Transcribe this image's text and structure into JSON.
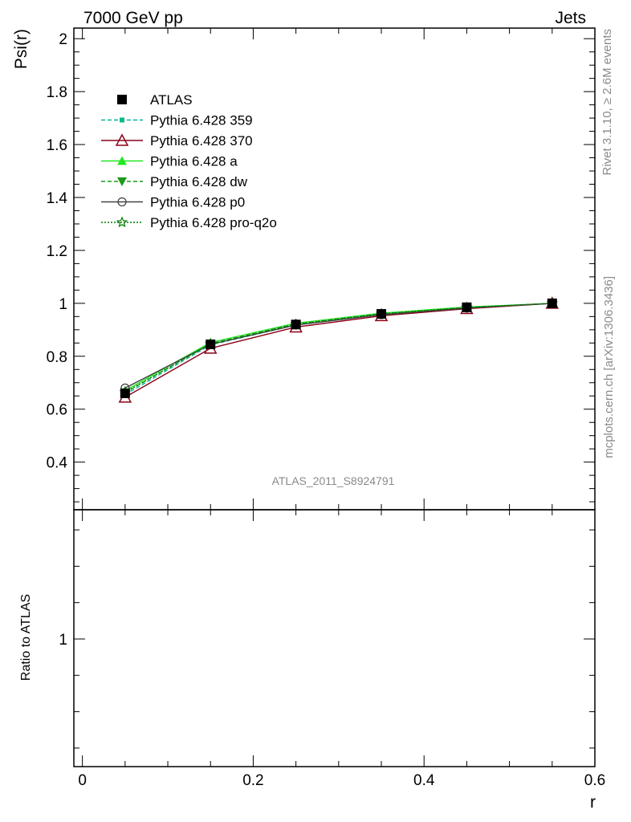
{
  "header": {
    "left": "7000 GeV pp",
    "right": "Jets"
  },
  "side": {
    "rivet": "Rivet 3.1.10, ≥ 2.6M events",
    "mcplots": "mcplots.cern.ch [arXiv:1306.3436]"
  },
  "watermark": "ATLAS_2011_S8924791",
  "chart_data": [
    {
      "type": "line",
      "panel": "main",
      "title": "",
      "xlabel": "r",
      "ylabel": "Psi(r)",
      "xlim": [
        -0.01,
        0.6
      ],
      "ylim": [
        0.22,
        2.04
      ],
      "yticks": [
        "0.4",
        "0.6",
        "0.8",
        "1",
        "1.2",
        "1.4",
        "1.6",
        "1.8",
        "2"
      ],
      "legend_position": "top-left",
      "x": [
        0.05,
        0.15,
        0.25,
        0.35,
        0.45,
        0.55
      ],
      "series": [
        {
          "name": "ATLAS",
          "color": "#000000",
          "marker": "filled-square",
          "line": "none",
          "values": [
            0.66,
            0.845,
            0.92,
            0.96,
            0.985,
            1.0
          ]
        },
        {
          "name": "Pythia 6.428 359",
          "color": "#00b890",
          "marker": "small-square",
          "line": "dashed",
          "values": [
            0.655,
            0.843,
            0.918,
            0.958,
            0.983,
            1.0
          ]
        },
        {
          "name": "Pythia 6.428 370",
          "color": "#8b0018",
          "marker": "open-triangle",
          "line": "solid",
          "values": [
            0.645,
            0.83,
            0.91,
            0.953,
            0.98,
            1.0
          ]
        },
        {
          "name": "Pythia 6.428 a",
          "color": "#22e822",
          "marker": "filled-triangle",
          "line": "solid",
          "values": [
            0.67,
            0.852,
            0.925,
            0.963,
            0.986,
            1.0
          ]
        },
        {
          "name": "Pythia 6.428 dw",
          "color": "#1a9a1a",
          "marker": "filled-triangle-down",
          "line": "dashed",
          "values": [
            0.662,
            0.848,
            0.922,
            0.96,
            0.984,
            1.0
          ]
        },
        {
          "name": "Pythia 6.428 p0",
          "color": "#444444",
          "marker": "open-circle",
          "line": "solid",
          "values": [
            0.68,
            0.845,
            0.918,
            0.957,
            0.982,
            1.0
          ]
        },
        {
          "name": "Pythia 6.428 pro-q2o",
          "color": "#007a00",
          "marker": "open-star",
          "line": "dotted",
          "values": [
            0.664,
            0.846,
            0.921,
            0.96,
            0.984,
            1.0
          ]
        }
      ]
    },
    {
      "type": "line",
      "panel": "ratio",
      "title": "",
      "xlabel": "r",
      "ylabel": "Ratio to ATLAS",
      "xlim": [
        -0.01,
        0.6
      ],
      "xticks": [
        "0",
        "0.2",
        "0.4",
        "0.6"
      ],
      "yticks": [
        "1"
      ],
      "series": []
    }
  ]
}
